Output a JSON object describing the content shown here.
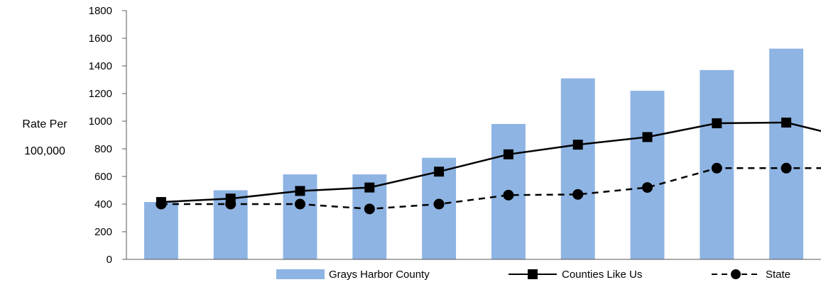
{
  "chart_data": {
    "type": "bar",
    "title": "",
    "xlabel": "",
    "ylabel_lines": [
      "Rate Per",
      "100,000"
    ],
    "ylim": [
      0,
      1800
    ],
    "yticks": [
      0,
      200,
      400,
      600,
      800,
      1000,
      1200,
      1400,
      1600,
      1800
    ],
    "categories": [
      "",
      "",
      "",
      "",
      "",
      "",
      "",
      "",
      "",
      ""
    ],
    "grid": false,
    "legend_position": "bottom",
    "series": [
      {
        "name": "Grays Harbor County",
        "type": "bar",
        "color": "#8eb4e3",
        "values": [
          415,
          500,
          615,
          615,
          735,
          980,
          1310,
          1220,
          1370,
          1525
        ]
      },
      {
        "name": "Counties Like Us",
        "type": "line",
        "line_style": "solid",
        "marker": "square",
        "color": "#000000",
        "values": [
          415,
          440,
          495,
          520,
          635,
          760,
          830,
          885,
          985,
          990
        ]
      },
      {
        "name": "State",
        "type": "line",
        "line_style": "dashed",
        "marker": "circle",
        "color": "#000000",
        "values": [
          400,
          400,
          400,
          365,
          400,
          465,
          470,
          520,
          660,
          660
        ]
      }
    ]
  }
}
